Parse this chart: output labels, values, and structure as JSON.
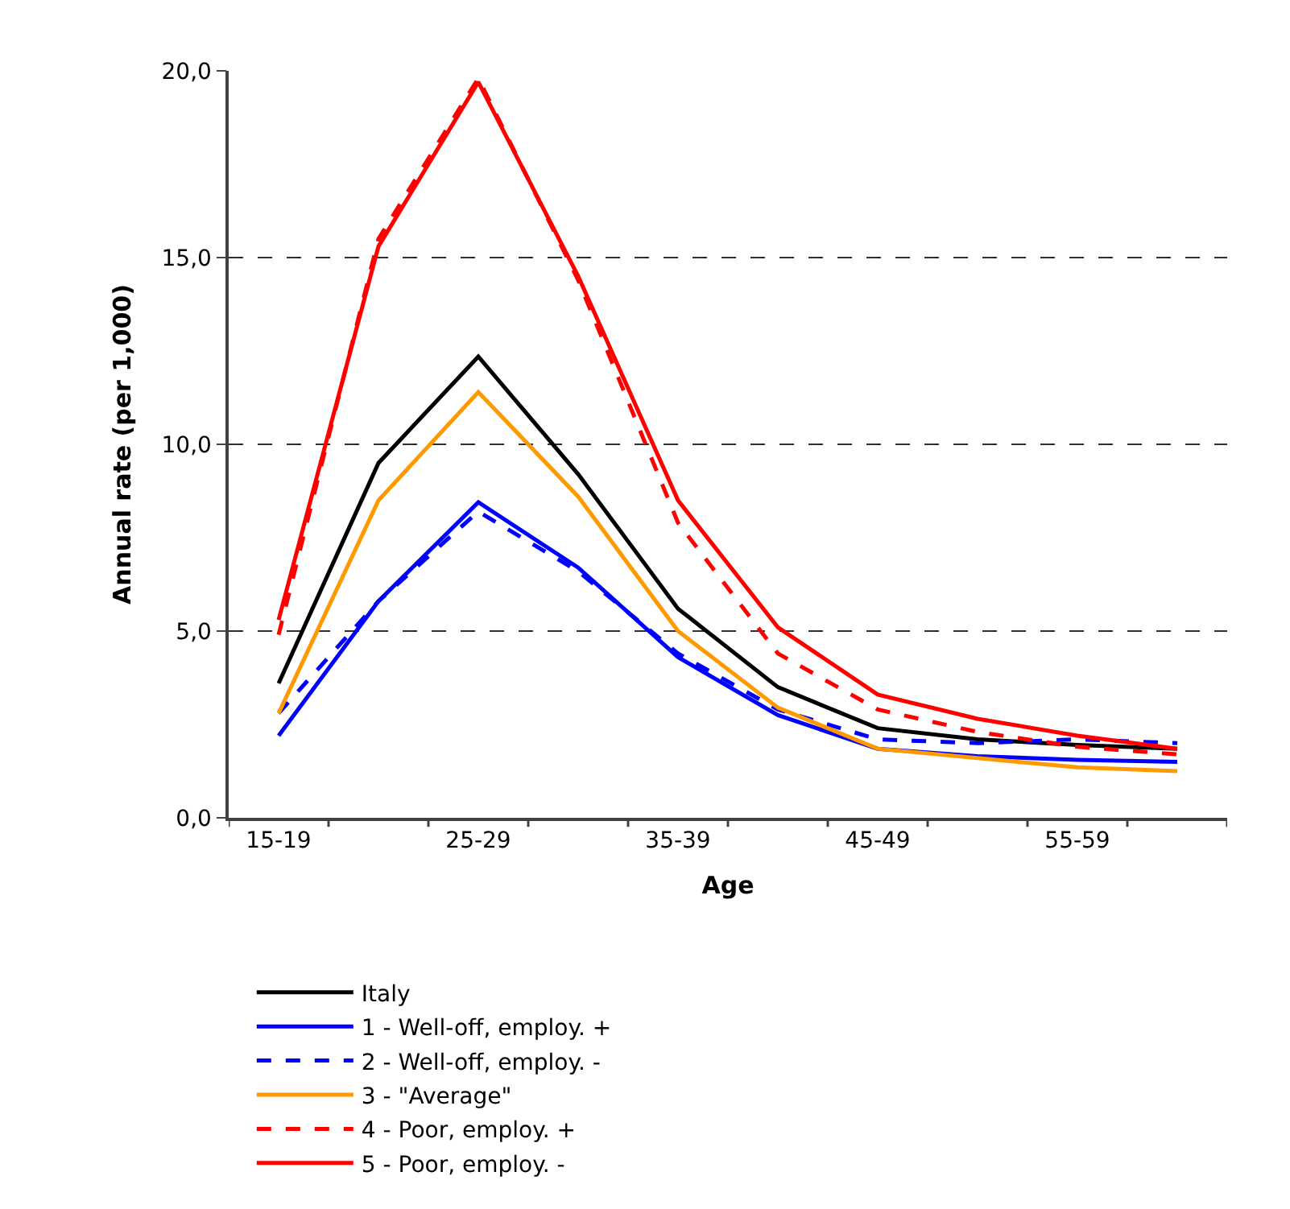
{
  "chart_data": {
    "type": "line",
    "xlabel": "Age",
    "ylabel": "Annual rate (per 1,000)",
    "categories": [
      "15-19",
      null,
      "25-29",
      null,
      "35-39",
      null,
      "45-49",
      null,
      "55-59",
      null
    ],
    "ylim": [
      0,
      20
    ],
    "yticks": [
      {
        "value": 0,
        "label": "0,0"
      },
      {
        "value": 5,
        "label": "5,0"
      },
      {
        "value": 10,
        "label": "10,0"
      },
      {
        "value": 15,
        "label": "15,0"
      },
      {
        "value": 20,
        "label": "20,0"
      }
    ],
    "grid": "y",
    "legend": "bottom",
    "marker": "none",
    "series": [
      {
        "name": "Italy",
        "color": "#000000",
        "line_style": "solid",
        "values": [
          3.6,
          9.5,
          12.35,
          9.2,
          5.6,
          3.5,
          2.4,
          2.1,
          1.95,
          1.85
        ]
      },
      {
        "name": "1 - Well-off, employ. +",
        "color": "#0000ff",
        "line_style": "solid",
        "values": [
          2.2,
          5.8,
          8.45,
          6.7,
          4.3,
          2.75,
          1.85,
          1.65,
          1.55,
          1.5
        ]
      },
      {
        "name": "2 - Well-off, employ. -",
        "color": "#0000ff",
        "line_style": "dashed",
        "values": [
          2.8,
          5.8,
          8.2,
          6.6,
          4.4,
          2.9,
          2.1,
          2.0,
          2.1,
          2.0
        ]
      },
      {
        "name": "3 - \"Average\"",
        "color": "#ff9900",
        "line_style": "solid",
        "values": [
          2.8,
          8.5,
          11.4,
          8.6,
          5.0,
          2.95,
          1.85,
          1.6,
          1.35,
          1.25
        ]
      },
      {
        "name": "4 - Poor, employ. +",
        "color": "#ff0000",
        "line_style": "dashed",
        "values": [
          4.9,
          15.5,
          19.8,
          14.4,
          7.9,
          4.4,
          2.9,
          2.3,
          1.9,
          1.7
        ]
      },
      {
        "name": "5 - Poor, employ. -",
        "color": "#ff0000",
        "line_style": "solid",
        "values": [
          5.3,
          15.3,
          19.7,
          14.5,
          8.5,
          5.1,
          3.3,
          2.65,
          2.2,
          1.85
        ]
      }
    ]
  }
}
